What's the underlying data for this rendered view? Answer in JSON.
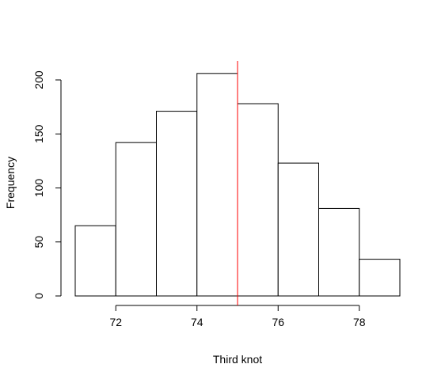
{
  "chart_data": {
    "type": "bar",
    "title": "",
    "xlabel": "Third knot",
    "ylabel": "Frequency",
    "bins": [
      {
        "start": 71,
        "end": 72,
        "count": 65
      },
      {
        "start": 72,
        "end": 73,
        "count": 142
      },
      {
        "start": 73,
        "end": 74,
        "count": 171
      },
      {
        "start": 74,
        "end": 75,
        "count": 206
      },
      {
        "start": 75,
        "end": 76,
        "count": 178
      },
      {
        "start": 76,
        "end": 77,
        "count": 123
      },
      {
        "start": 77,
        "end": 78,
        "count": 81
      },
      {
        "start": 78,
        "end": 79,
        "count": 34
      }
    ],
    "xlim": [
      71,
      79
    ],
    "ylim": [
      0,
      220
    ],
    "x_ticks": [
      72,
      74,
      76,
      78
    ],
    "y_ticks": [
      0,
      50,
      100,
      150,
      200
    ],
    "reference_line": {
      "x": 75,
      "color": "#ff0000"
    },
    "bar_fill": "#ffffff",
    "bar_stroke": "#000000",
    "grid": false
  }
}
